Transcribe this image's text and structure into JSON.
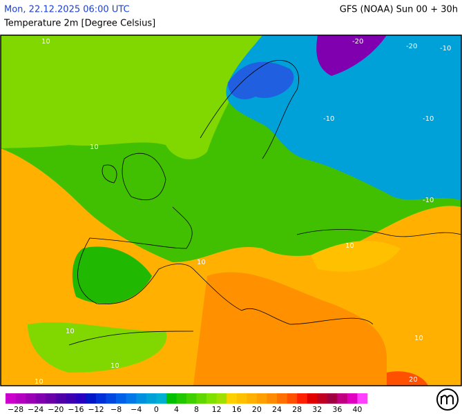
{
  "header": {
    "datetime": "Mon, 22.12.2025 06:00 UTC",
    "model": "GFS (NOAA) Sun 00 + 30h",
    "parameter": "Temperature 2m [Degree Celsius]"
  },
  "map": {
    "contour_labels": [
      "-20",
      "-20",
      "-10",
      "-10",
      "-10",
      "-10",
      "10",
      "10",
      "10",
      "10",
      "10",
      "10",
      "10",
      "10",
      "20"
    ]
  },
  "legend": {
    "colors": [
      "#cc00cc",
      "#b400c0",
      "#9a00b4",
      "#8000b0",
      "#6a00a8",
      "#5000a8",
      "#3c00b0",
      "#2800c0",
      "#0018c8",
      "#0030d8",
      "#0048e0",
      "#0060e8",
      "#0078e8",
      "#0090e0",
      "#00a0d8",
      "#00b0d0",
      "#00c000",
      "#20c800",
      "#40d000",
      "#60d800",
      "#80e000",
      "#a0e000",
      "#ffd000",
      "#ffc000",
      "#ffb000",
      "#ffa000",
      "#ff8c00",
      "#ff7000",
      "#ff5000",
      "#ff2000",
      "#e00000",
      "#c00020",
      "#a00040",
      "#c00080",
      "#e000c0",
      "#ff40ff"
    ],
    "labels": [
      "−28",
      "−24",
      "−20",
      "−16",
      "−12",
      "−8",
      "−4",
      "0",
      "4",
      "8",
      "12",
      "16",
      "20",
      "24",
      "28",
      "32",
      "36",
      "40"
    ]
  }
}
